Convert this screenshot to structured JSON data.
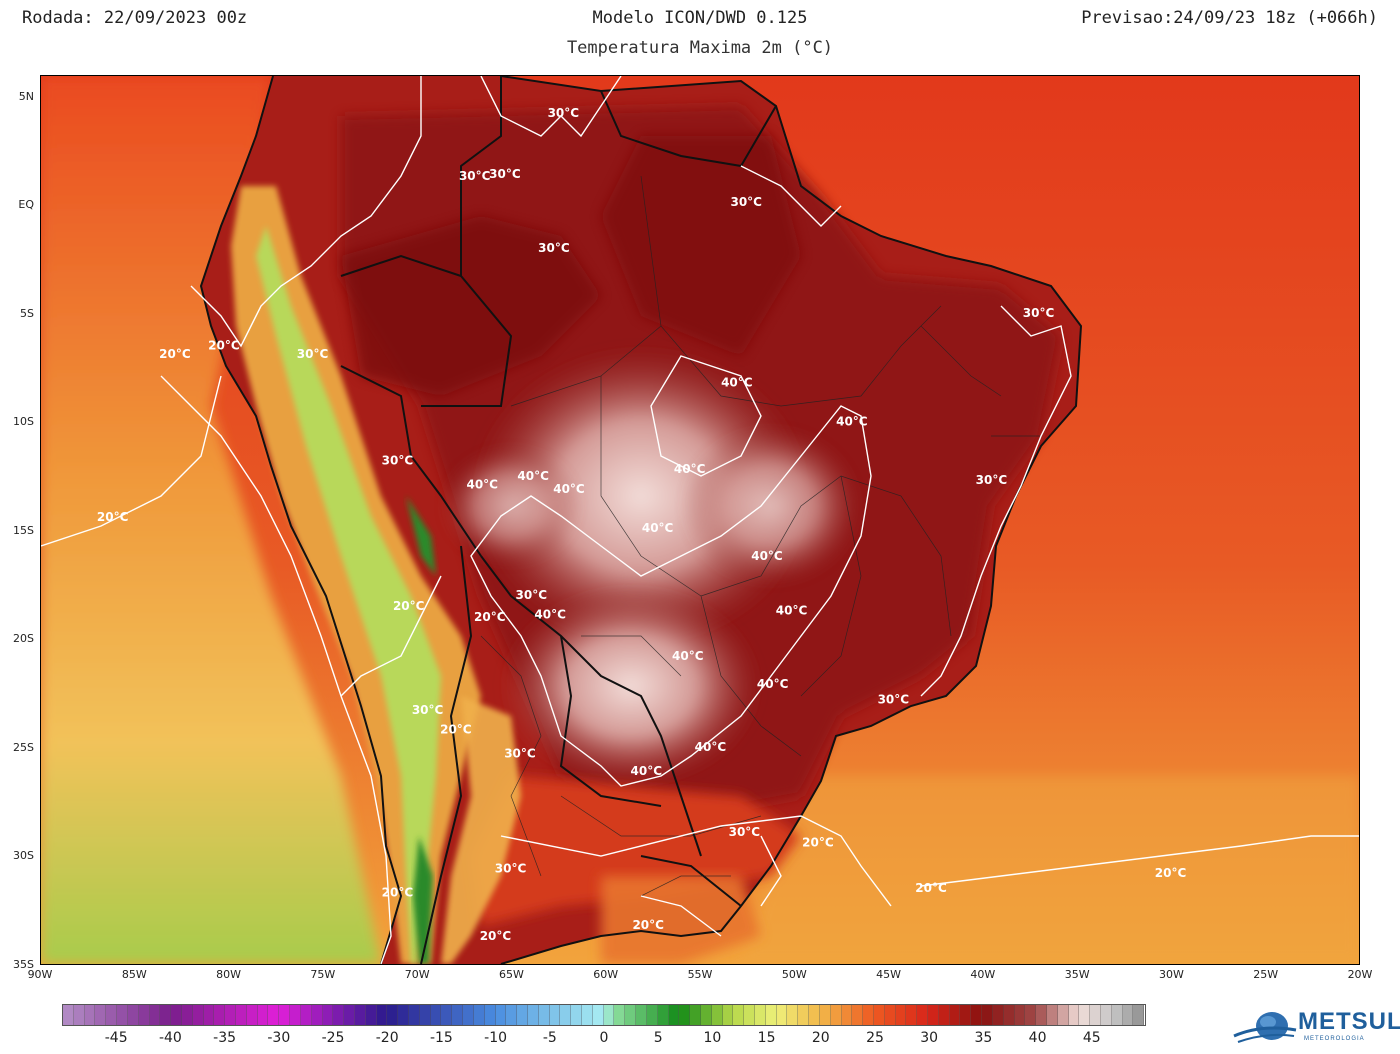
{
  "header": {
    "left": "Rodada: 22/09/2023 00z",
    "center": "Modelo ICON/DWD 0.125",
    "subtitle": "Temperatura Maxima 2m (°C)",
    "right": "Previsao:24/09/23 18z (+066h)"
  },
  "map": {
    "lat_labels": [
      "5N",
      "EQ",
      "5S",
      "10S",
      "15S",
      "20S",
      "25S",
      "30S",
      "35S"
    ],
    "lat_values": [
      5,
      0,
      -5,
      -10,
      -15,
      -20,
      -25,
      -30,
      -35
    ],
    "lon_labels": [
      "90W",
      "85W",
      "80W",
      "75W",
      "70W",
      "65W",
      "60W",
      "55W",
      "50W",
      "45W",
      "40W",
      "35W",
      "30W",
      "25W",
      "20W"
    ],
    "lon_values": [
      -90,
      -85,
      -80,
      -75,
      -70,
      -65,
      -60,
      -55,
      -50,
      -45,
      -40,
      -35,
      -30,
      -25,
      -20
    ],
    "contour_labels": [
      {
        "text": "30°C",
        "lon": -62.3,
        "lat": 4.1
      },
      {
        "text": "30°C",
        "lon": -67.0,
        "lat": 1.2
      },
      {
        "text": "30°C",
        "lon": -65.4,
        "lat": 1.3
      },
      {
        "text": "30°C",
        "lon": -52.6,
        "lat": 0.0
      },
      {
        "text": "30°C",
        "lon": -62.8,
        "lat": -2.1
      },
      {
        "text": "30°C",
        "lon": -37.1,
        "lat": -5.1
      },
      {
        "text": "20°C",
        "lon": -80.3,
        "lat": -6.6
      },
      {
        "text": "20°C",
        "lon": -82.9,
        "lat": -7.0
      },
      {
        "text": "30°C",
        "lon": -75.6,
        "lat": -7.0
      },
      {
        "text": "40°C",
        "lon": -53.1,
        "lat": -8.3
      },
      {
        "text": "40°C",
        "lon": -47.0,
        "lat": -10.1
      },
      {
        "text": "30°C",
        "lon": -71.1,
        "lat": -11.9
      },
      {
        "text": "40°C",
        "lon": -55.6,
        "lat": -12.3
      },
      {
        "text": "40°C",
        "lon": -63.9,
        "lat": -12.6
      },
      {
        "text": "40°C",
        "lon": -66.6,
        "lat": -13.0
      },
      {
        "text": "40°C",
        "lon": -62.0,
        "lat": -13.2
      },
      {
        "text": "30°C",
        "lon": -39.6,
        "lat": -12.8
      },
      {
        "text": "20°C",
        "lon": -86.2,
        "lat": -14.5
      },
      {
        "text": "40°C",
        "lon": -57.3,
        "lat": -15.0
      },
      {
        "text": "40°C",
        "lon": -51.5,
        "lat": -16.3
      },
      {
        "text": "30°C",
        "lon": -64.0,
        "lat": -18.1
      },
      {
        "text": "20°C",
        "lon": -70.5,
        "lat": -18.6
      },
      {
        "text": "20°C",
        "lon": -66.2,
        "lat": -19.1
      },
      {
        "text": "40°C",
        "lon": -63.0,
        "lat": -19.0
      },
      {
        "text": "40°C",
        "lon": -50.2,
        "lat": -18.8
      },
      {
        "text": "40°C",
        "lon": -55.7,
        "lat": -20.9
      },
      {
        "text": "40°C",
        "lon": -51.2,
        "lat": -22.2
      },
      {
        "text": "30°C",
        "lon": -44.8,
        "lat": -22.9
      },
      {
        "text": "30°C",
        "lon": -69.5,
        "lat": -23.4
      },
      {
        "text": "20°C",
        "lon": -68.0,
        "lat": -24.3
      },
      {
        "text": "40°C",
        "lon": -54.5,
        "lat": -25.1
      },
      {
        "text": "30°C",
        "lon": -64.6,
        "lat": -25.4
      },
      {
        "text": "40°C",
        "lon": -57.9,
        "lat": -26.2
      },
      {
        "text": "30°C",
        "lon": -52.7,
        "lat": -29.0
      },
      {
        "text": "20°C",
        "lon": -48.8,
        "lat": -29.5
      },
      {
        "text": "30°C",
        "lon": -65.1,
        "lat": -30.7
      },
      {
        "text": "20°C",
        "lon": -42.8,
        "lat": -31.6
      },
      {
        "text": "20°C",
        "lon": -30.1,
        "lat": -30.9
      },
      {
        "text": "20°C",
        "lon": -71.1,
        "lat": -31.8
      },
      {
        "text": "20°C",
        "lon": -57.8,
        "lat": -33.3
      },
      {
        "text": "20°C",
        "lon": -65.9,
        "lat": -33.8
      }
    ]
  },
  "colorbar": {
    "ticks": [
      "-45",
      "-40",
      "-35",
      "-30",
      "-25",
      "-20",
      "-15",
      "-10",
      "-5",
      "0",
      "5",
      "10",
      "15",
      "20",
      "25",
      "30",
      "35",
      "40",
      "45"
    ],
    "tick_values": [
      -45,
      -40,
      -35,
      -30,
      -25,
      -20,
      -15,
      -10,
      -5,
      0,
      5,
      10,
      15,
      20,
      25,
      30,
      35,
      40,
      45
    ],
    "min": -50,
    "max": 50,
    "step": 1,
    "stops": [
      {
        "v": -50,
        "c": "#b48fc7"
      },
      {
        "v": -40,
        "c": "#7a1e8c"
      },
      {
        "v": -30,
        "c": "#e01fd8"
      },
      {
        "v": -20,
        "c": "#2a1a8c"
      },
      {
        "v": -10,
        "c": "#4a8de0"
      },
      {
        "v": -5,
        "c": "#7cc0e8"
      },
      {
        "v": 0,
        "c": "#a8ecf2"
      },
      {
        "v": 1,
        "c": "#8ee0a0"
      },
      {
        "v": 7,
        "c": "#128a16"
      },
      {
        "v": 12,
        "c": "#b6d84a"
      },
      {
        "v": 16,
        "c": "#eef07a"
      },
      {
        "v": 20,
        "c": "#f2b84a"
      },
      {
        "v": 25,
        "c": "#ee5a22"
      },
      {
        "v": 30,
        "c": "#d8261a"
      },
      {
        "v": 35,
        "c": "#8a1210"
      },
      {
        "v": 40,
        "c": "#a04848"
      },
      {
        "v": 44,
        "c": "#f0dcd8"
      },
      {
        "v": 47,
        "c": "#c8c8c8"
      },
      {
        "v": 50,
        "c": "#909090"
      }
    ]
  },
  "logo": {
    "name": "METSUL",
    "sub": "METEOROLOGIA"
  }
}
